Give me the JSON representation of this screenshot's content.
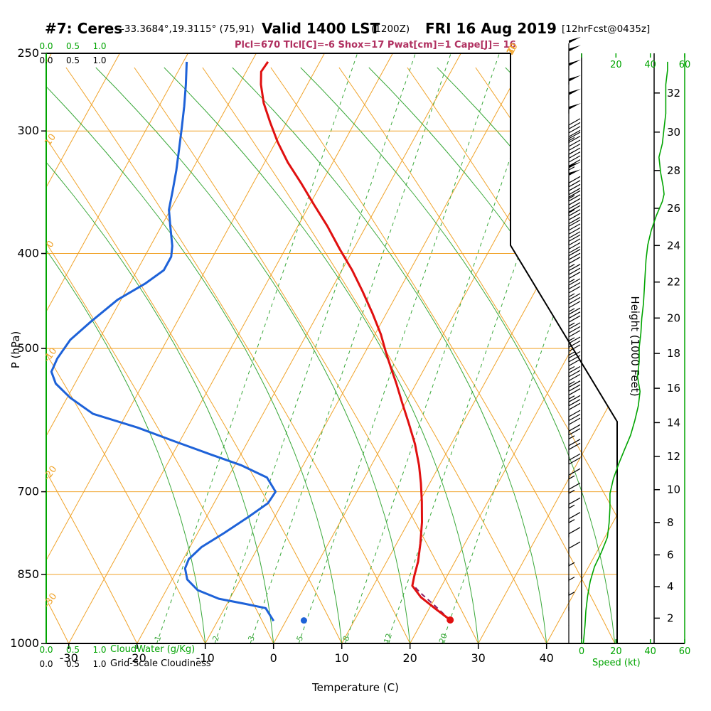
{
  "header": {
    "station": "#7: Ceres",
    "location": "-33.3684°,19.3115° (75,91)",
    "valid": "Valid 1400 LST",
    "valid_zulu": "(1200Z)",
    "valid_date": "FRI 16 Aug 2019",
    "forecast_tag": "[12hrFcst@0435z]",
    "parameters": "Plcl=670 Tlcl[C]=-6 Shox=17 Pwat[cm]=1 Cape[J]= 16"
  },
  "colors": {
    "temperature_curve": "#e01010",
    "dewpoint_curve": "#1e62d8",
    "parcel_path": "#8b2066",
    "background_lines": "#f0a32a",
    "moist_adiabat_green": "#3aa83a",
    "axis_green": "#00a400",
    "frame_black": "#000000",
    "params_text": "#b03060"
  },
  "axes": {
    "pressure": {
      "label": "P (hPa)",
      "ticks": [
        250,
        300,
        400,
        500,
        700,
        850,
        1000
      ]
    },
    "temperature": {
      "label": "Temperature (C)",
      "ticks": [
        -30,
        -20,
        -10,
        0,
        10,
        20,
        30,
        40
      ]
    },
    "height": {
      "label": "Height (1000 Feet)",
      "ticks": [
        2,
        4,
        6,
        8,
        10,
        12,
        14,
        16,
        18,
        20,
        22,
        24,
        26,
        28,
        30,
        32
      ]
    },
    "speed": {
      "label": "Speed (kt)",
      "ticks": [
        0,
        20,
        40,
        60
      ]
    },
    "cloudwater": {
      "label": "CloudWater (g/Kg)",
      "ticks": [
        "0.0",
        "0.5",
        "1.0"
      ]
    },
    "cloudiness": {
      "label": "Grid-Scale Cloudiness",
      "ticks": [
        "0.0",
        "0.5",
        "1.0"
      ]
    }
  },
  "chart_data": {
    "type": "skewt_logp_sounding",
    "pressure_range_hpa": [
      250,
      1000
    ],
    "temperature_axis_range_c": [
      -35,
      45
    ],
    "isotherm_exit_labels_c": [
      0,
      10,
      20,
      30
    ],
    "dry_adiabat_labels_c": [
      10,
      0,
      -10,
      -20,
      -30
    ],
    "mixing_ratio_lines_gkg": [
      {
        "value": 1,
        "sfc_dewpoint_c": -17.1
      },
      {
        "value": 2,
        "sfc_dewpoint_c": -8.6
      },
      {
        "value": 3,
        "sfc_dewpoint_c": -3.4
      },
      {
        "value": 5,
        "sfc_dewpoint_c": 3.7
      },
      {
        "value": 8,
        "sfc_dewpoint_c": 10.5
      },
      {
        "value": 12,
        "sfc_dewpoint_c": 16.6
      },
      {
        "value": 20,
        "sfc_dewpoint_c": 24.7
      }
    ],
    "temperature_profile": {
      "units": "hPa,C",
      "points": [
        [
          946,
          24.0
        ],
        [
          921,
          20.9
        ],
        [
          897,
          17.9
        ],
        [
          873,
          15.7
        ],
        [
          853,
          15.2
        ],
        [
          825,
          14.6
        ],
        [
          791,
          13.5
        ],
        [
          752,
          12.0
        ],
        [
          716,
          10.3
        ],
        [
          686,
          8.7
        ],
        [
          658,
          7.0
        ],
        [
          626,
          4.7
        ],
        [
          596,
          2.1
        ],
        [
          567,
          -0.6
        ],
        [
          543,
          -2.9
        ],
        [
          521,
          -5.2
        ],
        [
          504,
          -7.0
        ],
        [
          484,
          -9.1
        ],
        [
          460,
          -12.1
        ],
        [
          437,
          -15.3
        ],
        [
          416,
          -18.5
        ],
        [
          396,
          -22.0
        ],
        [
          375,
          -25.7
        ],
        [
          356,
          -29.5
        ],
        [
          339,
          -33.0
        ],
        [
          323,
          -36.6
        ],
        [
          308,
          -39.7
        ],
        [
          294,
          -42.4
        ],
        [
          281,
          -44.9
        ],
        [
          269,
          -46.8
        ],
        [
          261,
          -47.8
        ],
        [
          255,
          -47.6
        ]
      ]
    },
    "dewpoint_profile": {
      "units": "hPa,C",
      "points": [
        [
          948,
          -1.8
        ],
        [
          920,
          -4.0
        ],
        [
          911,
          -7.3
        ],
        [
          900,
          -11.6
        ],
        [
          882,
          -15.4
        ],
        [
          860,
          -17.8
        ],
        [
          838,
          -19.0
        ],
        [
          820,
          -19.2
        ],
        [
          797,
          -18.3
        ],
        [
          771,
          -16.1
        ],
        [
          742,
          -13.8
        ],
        [
          719,
          -12.1
        ],
        [
          700,
          -11.9
        ],
        [
          677,
          -14.3
        ],
        [
          658,
          -19.0
        ],
        [
          641,
          -24.5
        ],
        [
          622,
          -30.7
        ],
        [
          602,
          -37.3
        ],
        [
          583,
          -44.9
        ],
        [
          561,
          -49.6
        ],
        [
          543,
          -52.8
        ],
        [
          528,
          -54.4
        ],
        [
          512,
          -54.6
        ],
        [
          490,
          -54.2
        ],
        [
          469,
          -52.6
        ],
        [
          446,
          -50.5
        ],
        [
          429,
          -47.7
        ],
        [
          416,
          -46.1
        ],
        [
          403,
          -46.1
        ],
        [
          393,
          -46.8
        ],
        [
          375,
          -48.7
        ],
        [
          361,
          -50.2
        ],
        [
          345,
          -51.2
        ],
        [
          329,
          -52.3
        ],
        [
          313,
          -53.6
        ],
        [
          298,
          -54.9
        ],
        [
          283,
          -56.3
        ],
        [
          269,
          -57.8
        ],
        [
          255,
          -59.5
        ]
      ]
    },
    "parcel_path": {
      "units": "hPa,C",
      "points": [
        [
          946,
          24.0
        ],
        [
          912,
          20.3
        ],
        [
          888,
          17.5
        ],
        [
          870,
          15.6
        ]
      ]
    },
    "surface_markers": {
      "temperature": [
        946,
        24.0
      ],
      "dewpoint": [
        947,
        2.6
      ]
    },
    "wind_speed_profile": {
      "units": "hPa,kt",
      "points": [
        [
          1000,
          1
        ],
        [
          958,
          2
        ],
        [
          926,
          2.5
        ],
        [
          894,
          3.5
        ],
        [
          864,
          5
        ],
        [
          835,
          7.5
        ],
        [
          807,
          11.5
        ],
        [
          779,
          15
        ],
        [
          753,
          16
        ],
        [
          727,
          16.5
        ],
        [
          703,
          16.5
        ],
        [
          679,
          18.5
        ],
        [
          656,
          21.5
        ],
        [
          634,
          25
        ],
        [
          613,
          28.5
        ],
        [
          592,
          31
        ],
        [
          572,
          33
        ],
        [
          553,
          34
        ],
        [
          534,
          32.5
        ],
        [
          516,
          33.5
        ],
        [
          499,
          33.5
        ],
        [
          482,
          34.5
        ],
        [
          466,
          35
        ],
        [
          450,
          36
        ],
        [
          435,
          36.5
        ],
        [
          420,
          37
        ],
        [
          406,
          37.5
        ],
        [
          392,
          38.5
        ],
        [
          379,
          40.5
        ],
        [
          366,
          43.5
        ],
        [
          354,
          47
        ],
        [
          348,
          48
        ],
        [
          342,
          47.5
        ],
        [
          331,
          46
        ],
        [
          319,
          45
        ],
        [
          309,
          47
        ],
        [
          298,
          48
        ],
        [
          288,
          49
        ],
        [
          279,
          49
        ],
        [
          269,
          49
        ],
        [
          260,
          50
        ],
        [
          255,
          50
        ]
      ]
    }
  }
}
